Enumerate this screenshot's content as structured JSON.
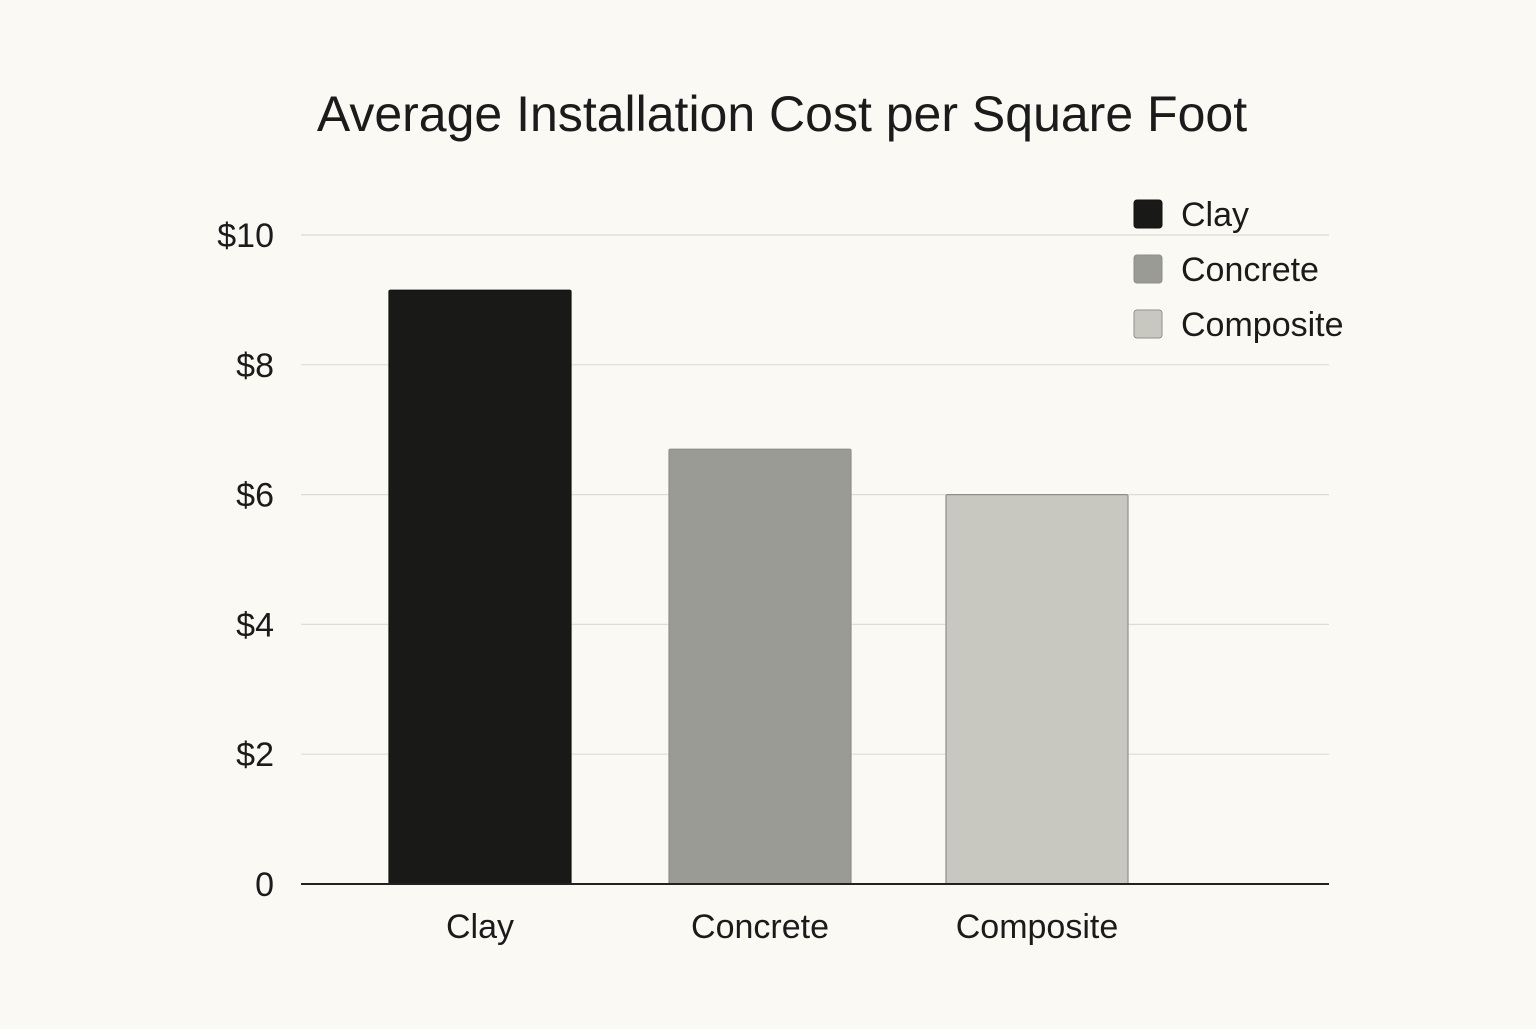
{
  "chart_data": {
    "type": "bar",
    "title": "Average Installation Cost per Square Foot",
    "xlabel": "",
    "ylabel": "",
    "categories": [
      "Clay",
      "Concrete",
      "Composite"
    ],
    "values": [
      9.15,
      6.7,
      6.0
    ],
    "ylim": [
      0,
      10
    ],
    "yticks": [
      {
        "value": 0,
        "label": "0"
      },
      {
        "value": 2,
        "label": "$2"
      },
      {
        "value": 4,
        "label": "$4"
      },
      {
        "value": 6,
        "label": "$6"
      },
      {
        "value": 8,
        "label": "$8"
      },
      {
        "value": 10,
        "label": "$10"
      }
    ],
    "grid": true,
    "legend": {
      "position": "top-right",
      "entries": [
        "Clay",
        "Concrete",
        "Composite"
      ]
    },
    "colors": [
      "#191a17",
      "#9a9b95",
      "#c9c8c0"
    ]
  }
}
